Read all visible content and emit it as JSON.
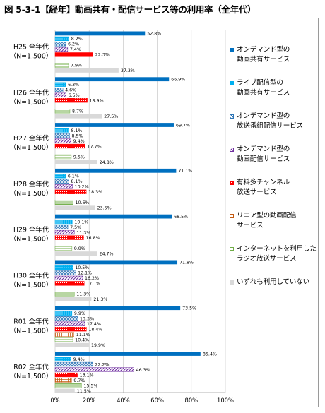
{
  "title": "図 5-3-1【経年】動画共有・配信サービス等の利用率（全年代）",
  "chart_data": {
    "type": "bar",
    "orientation": "horizontal",
    "xlim": [
      0,
      100
    ],
    "x_ticks": [
      "0%",
      "20%",
      "40%",
      "60%",
      "80%",
      "100%"
    ],
    "grid": true,
    "legend_position": "right",
    "categories": [
      {
        "line1": "H25 全年代",
        "line2": "（N=1,500）"
      },
      {
        "line1": "H26 全年代",
        "line2": "（N=1,500）"
      },
      {
        "line1": "H27 全年代",
        "line2": "（N=1,500）"
      },
      {
        "line1": "H28 全年代",
        "line2": "（N=1,500）"
      },
      {
        "line1": "H29 全年代",
        "line2": "（N=1,500）"
      },
      {
        "line1": "H30 全年代",
        "line2": "（N=1,500）"
      },
      {
        "line1": "R01 全年代",
        "line2": "（N=1,500）"
      },
      {
        "line1": "R02 全年代",
        "line2": "（N=1,500）"
      }
    ],
    "series": [
      {
        "name": "オンデマンド型の\n動画共有サービス",
        "color": "#0070C0",
        "pattern": "solid",
        "values": [
          52.8,
          66.9,
          69.7,
          71.1,
          68.5,
          71.8,
          73.5,
          85.4
        ]
      },
      {
        "name": "ライブ配信型の\n動画共有サービス",
        "color": "#00B0F0",
        "pattern": "dots",
        "values": [
          8.2,
          6.3,
          8.1,
          6.1,
          10.1,
          10.5,
          9.9,
          9.4
        ]
      },
      {
        "name": "オンデマンド型の\n放送番組配信サービス",
        "color": "#2E75B6",
        "pattern": "crosshatch",
        "values": [
          6.2,
          4.6,
          8.5,
          8.1,
          7.5,
          12.1,
          13.3,
          22.2
        ]
      },
      {
        "name": "オンデマンド型の\n動画配信サービス",
        "color": "#7030A0",
        "pattern": "diagonal",
        "values": [
          7.4,
          6.5,
          9.4,
          10.2,
          11.3,
          16.2,
          17.4,
          46.3
        ]
      },
      {
        "name": "有料多チャンネル\n放送サービス",
        "color": "#FF0000",
        "pattern": "dots",
        "values": [
          22.3,
          18.9,
          17.7,
          18.3,
          16.8,
          17.1,
          18.4,
          13.1
        ]
      },
      {
        "name": "リニア型の動画配信\nサービス",
        "color": "#C55A11",
        "pattern": "grid",
        "values": [
          null,
          null,
          null,
          null,
          null,
          null,
          11.1,
          9.7
        ]
      },
      {
        "name": "インターネットを利用した\nラジオ放送サービス",
        "color": "#70AD47",
        "pattern": "horizontal",
        "values": [
          7.9,
          8.7,
          9.5,
          10.6,
          9.9,
          11.3,
          10.4,
          15.5
        ]
      },
      {
        "name": "いずれも利用していない",
        "color": "#D9D9D9",
        "pattern": "solid",
        "values": [
          37.3,
          27.5,
          24.8,
          23.5,
          24.7,
          21.3,
          19.9,
          11.5
        ]
      }
    ]
  }
}
